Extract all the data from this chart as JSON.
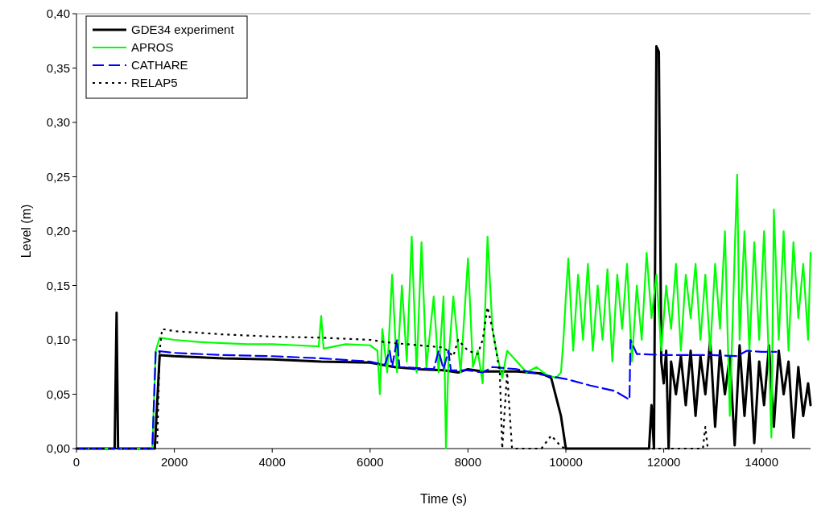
{
  "chart_data": {
    "type": "line",
    "xlabel": "Time (s)",
    "ylabel": "Level (m)",
    "xlim": [
      0,
      15000
    ],
    "xticks": [
      0,
      2000,
      4000,
      6000,
      8000,
      10000,
      12000,
      14000
    ],
    "ylim": [
      0,
      0.4
    ],
    "yticks": [
      {
        "value": 0,
        "label": "0,00"
      },
      {
        "value": 0.05,
        "label": "0,05"
      },
      {
        "value": 0.1,
        "label": "0,10"
      },
      {
        "value": 0.15,
        "label": "0,15"
      },
      {
        "value": 0.2,
        "label": "0,20"
      },
      {
        "value": 0.25,
        "label": "0,25"
      },
      {
        "value": 0.3,
        "label": "0,30"
      },
      {
        "value": 0.35,
        "label": "0,35"
      },
      {
        "value": 0.4,
        "label": "0,40"
      }
    ],
    "grid": false,
    "legend": "top left",
    "marker": "none",
    "series": [
      {
        "name": "GDE34 experiment",
        "color": "#000000",
        "line_style": "solid",
        "x": [
          0,
          780,
          820,
          850,
          860,
          1550,
          1600,
          1700,
          2000,
          3000,
          4000,
          5000,
          6000,
          6500,
          7000,
          7500,
          7800,
          8000,
          8300,
          8600,
          9000,
          9500,
          9700,
          9900,
          10000,
          10500,
          11000,
          11500,
          11700,
          11750,
          11800,
          11850,
          11900,
          11950,
          12000,
          12050,
          12100,
          12150,
          12250,
          12350,
          12450,
          12550,
          12650,
          12750,
          12850,
          12950,
          13050,
          13150,
          13250,
          13350,
          13450,
          13550,
          13650,
          13750,
          13850,
          13950,
          14050,
          14150,
          14250,
          14350,
          14450,
          14550,
          14650,
          14750,
          14850,
          14950,
          15000
        ],
        "values": [
          0,
          0,
          0.125,
          0,
          0,
          0,
          0,
          0.086,
          0.085,
          0.083,
          0.082,
          0.08,
          0.079,
          0.075,
          0.073,
          0.072,
          0.07,
          0.073,
          0.071,
          0.071,
          0.071,
          0.069,
          0.065,
          0.03,
          0,
          0,
          0,
          0,
          0,
          0.04,
          0,
          0.37,
          0.365,
          0.08,
          0.06,
          0.09,
          0,
          0.08,
          0.05,
          0.085,
          0.04,
          0.09,
          0.03,
          0.085,
          0.05,
          0.1,
          0.02,
          0.09,
          0.05,
          0.085,
          0.003,
          0.095,
          0.03,
          0.09,
          0.005,
          0.08,
          0.04,
          0.095,
          0.02,
          0.09,
          0.05,
          0.08,
          0.01,
          0.075,
          0.03,
          0.06,
          0.04
        ]
      },
      {
        "name": "APROS",
        "color": "#00ff00",
        "line_style": "solid",
        "x": [
          0,
          1550,
          1620,
          1700,
          2000,
          2500,
          3000,
          3500,
          4000,
          4500,
          4950,
          5000,
          5050,
          5500,
          6000,
          6150,
          6200,
          6250,
          6350,
          6450,
          6550,
          6650,
          6750,
          6850,
          6950,
          7050,
          7150,
          7300,
          7400,
          7500,
          7550,
          7600,
          7700,
          7850,
          8000,
          8100,
          8200,
          8300,
          8400,
          8500,
          8600,
          8700,
          8800,
          9000,
          9200,
          9400,
          9600,
          9800,
          9900,
          9950,
          10000,
          10050,
          10150,
          10250,
          10350,
          10450,
          10550,
          10650,
          10750,
          10850,
          10950,
          11050,
          11150,
          11250,
          11350,
          11450,
          11550,
          11650,
          11750,
          11850,
          11950,
          12050,
          12150,
          12250,
          12350,
          12450,
          12550,
          12650,
          12750,
          12850,
          12950,
          13050,
          13150,
          13250,
          13350,
          13450,
          13500,
          13550,
          13650,
          13750,
          13850,
          13950,
          14050,
          14150,
          14200,
          14250,
          14350,
          14450,
          14550,
          14650,
          14750,
          14850,
          14950,
          15000
        ],
        "values": [
          0,
          0,
          0.09,
          0.102,
          0.1,
          0.098,
          0.097,
          0.096,
          0.096,
          0.095,
          0.094,
          0.122,
          0.092,
          0.096,
          0.095,
          0.09,
          0.05,
          0.11,
          0.07,
          0.16,
          0.07,
          0.15,
          0.08,
          0.195,
          0.07,
          0.19,
          0.075,
          0.14,
          0.07,
          0.14,
          0,
          0.08,
          0.14,
          0.07,
          0.175,
          0.075,
          0.09,
          0.06,
          0.195,
          0.11,
          0.085,
          0.065,
          0.09,
          0.08,
          0.07,
          0.075,
          0.068,
          0.065,
          0.07,
          0.1,
          0.14,
          0.175,
          0.09,
          0.16,
          0.1,
          0.17,
          0.09,
          0.15,
          0.1,
          0.165,
          0.08,
          0.16,
          0.11,
          0.17,
          0.08,
          0.15,
          0.1,
          0.18,
          0.12,
          0.16,
          0.09,
          0.15,
          0.11,
          0.17,
          0.09,
          0.16,
          0.12,
          0.17,
          0.1,
          0.16,
          0.09,
          0.17,
          0.11,
          0.2,
          0.03,
          0.18,
          0.252,
          0.1,
          0.2,
          0.09,
          0.19,
          0.1,
          0.2,
          0.08,
          0.01,
          0.22,
          0.1,
          0.2,
          0.09,
          0.19,
          0.12,
          0.17,
          0.1,
          0.18
        ]
      },
      {
        "name": "CATHARE",
        "color": "#0000ff",
        "line_style": "dashed",
        "x": [
          0,
          1550,
          1620,
          2000,
          3000,
          4000,
          5000,
          6000,
          6300,
          6400,
          6450,
          6550,
          6600,
          7000,
          7300,
          7400,
          7500,
          7600,
          7650,
          8000,
          8300,
          8500,
          9000,
          9500,
          10000,
          10500,
          11000,
          11300,
          11320,
          11450,
          12000,
          13000,
          13500,
          13700,
          14000,
          14300
        ],
        "values": [
          0,
          0,
          0.09,
          0.088,
          0.086,
          0.085,
          0.083,
          0.08,
          0.077,
          0.09,
          0.075,
          0.1,
          0.075,
          0.074,
          0.073,
          0.09,
          0.073,
          0.09,
          0.072,
          0.072,
          0.07,
          0.075,
          0.073,
          0.068,
          0.064,
          0.058,
          0.053,
          0.045,
          0.1,
          0.087,
          0.086,
          0.086,
          0.085,
          0.09,
          0.089,
          0.089
        ]
      },
      {
        "name": "RELAP5",
        "color": "#000000",
        "line_style": "dotted",
        "x": [
          0,
          1600,
          1650,
          1700,
          1750,
          2000,
          3000,
          4000,
          5000,
          6000,
          6300,
          6500,
          7000,
          7500,
          7700,
          7800,
          8000,
          8200,
          8300,
          8400,
          8500,
          8650,
          8700,
          8800,
          8900,
          9000,
          9500,
          9700,
          9900,
          10000,
          11000,
          12000,
          12800,
          12850,
          12900
        ],
        "values": [
          0,
          0,
          0.005,
          0.09,
          0.11,
          0.108,
          0.105,
          0.103,
          0.102,
          0.1,
          0.098,
          0.097,
          0.095,
          0.093,
          0.085,
          0.1,
          0.09,
          0.087,
          0.1,
          0.13,
          0.11,
          0.07,
          0,
          0.07,
          0,
          0,
          0,
          0.012,
          0.002,
          0,
          0,
          0,
          0,
          0.02,
          0
        ]
      }
    ]
  }
}
